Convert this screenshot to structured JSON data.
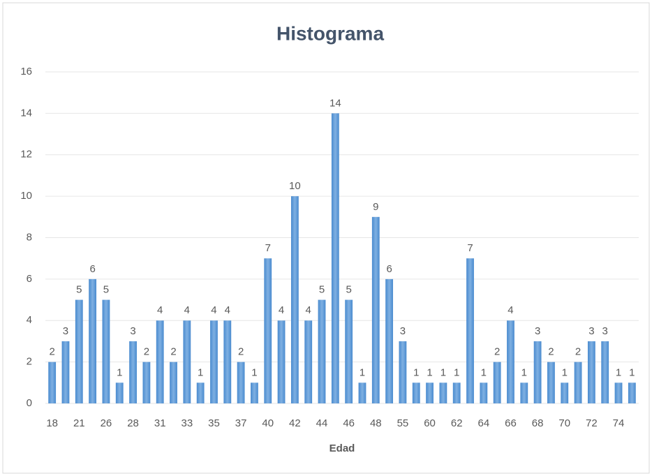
{
  "chart_data": {
    "type": "bar",
    "title": "Histograma",
    "x_label": "Edad",
    "categories": [
      "18",
      null,
      "21",
      null,
      "26",
      null,
      "28",
      null,
      "31",
      null,
      "33",
      null,
      "35",
      null,
      "37",
      null,
      "40",
      null,
      "42",
      null,
      "44",
      null,
      "46",
      null,
      "48",
      null,
      "55",
      null,
      "60",
      null,
      "62",
      null,
      "64",
      null,
      "66",
      null,
      "68",
      null,
      "70",
      null,
      "72",
      null,
      "74",
      null
    ],
    "values": [
      2,
      3,
      5,
      6,
      5,
      1,
      3,
      2,
      4,
      2,
      4,
      1,
      4,
      4,
      2,
      1,
      7,
      4,
      10,
      4,
      5,
      14,
      5,
      1,
      9,
      6,
      3,
      1,
      1,
      1,
      1,
      7,
      1,
      2,
      4,
      1,
      3,
      2,
      1,
      2,
      3,
      3,
      1,
      1
    ],
    "color": "#5b9bd5",
    "ylim": [
      0,
      16
    ],
    "yticks": [
      0,
      2,
      4,
      6,
      8,
      10,
      12,
      14,
      16
    ],
    "grid": true
  }
}
